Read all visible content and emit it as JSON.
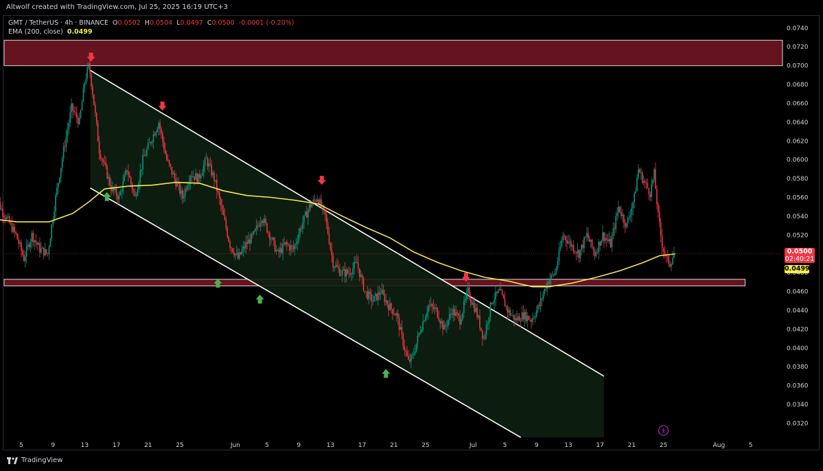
{
  "header": {
    "credit": "Altwolf created with TradingView.com, Jul 25, 2025 16:19 UTC+3"
  },
  "legend": {
    "symbol": "GMT / TetherUS · 4h · BINANCE",
    "open_label": "O",
    "open": "0.0502",
    "high_label": "H",
    "high": "0.0504",
    "low_label": "L",
    "low": "0.0497",
    "close_label": "C",
    "close": "0.0500",
    "change": "-0.0001 (-0.20%)",
    "ema_label": "EMA (200, close)",
    "ema_value": "0.0499"
  },
  "price_tags": {
    "last_price": "0.0500",
    "countdown": "02:40:21",
    "ema_price": "0.0499"
  },
  "branding": {
    "name": "TradingView"
  },
  "colors": {
    "background": "#000000",
    "up": "#089981",
    "down": "#f23645",
    "ema": "#f5e94a",
    "resistance_zone": "#6b1520",
    "channel": "#0d1f10",
    "arrow_up": "#4caf50",
    "arrow_down": "#f23645"
  },
  "chart_data": {
    "type": "candlestick",
    "symbol": "GMT / TetherUS",
    "timeframe": "4h",
    "exchange": "BINANCE",
    "y_axis": {
      "range": [
        0.0305,
        0.0753
      ],
      "ticks": [
        "0.0740",
        "0.0720",
        "0.0700",
        "0.0680",
        "0.0660",
        "0.0640",
        "0.0620",
        "0.0600",
        "0.0580",
        "0.0560",
        "0.0540",
        "0.0520",
        "0.0500",
        "0.0480",
        "0.0460",
        "0.0440",
        "0.0420",
        "0.0400",
        "0.0380",
        "0.0360",
        "0.0340",
        "0.0320"
      ]
    },
    "x_axis": {
      "ticks": [
        {
          "label": "5",
          "day": 5
        },
        {
          "label": "9",
          "day": 9
        },
        {
          "label": "13",
          "day": 13
        },
        {
          "label": "17",
          "day": 17
        },
        {
          "label": "21",
          "day": 21
        },
        {
          "label": "25",
          "day": 25
        },
        {
          "label": "Jun",
          "day": 32
        },
        {
          "label": "5",
          "day": 36
        },
        {
          "label": "9",
          "day": 40
        },
        {
          "label": "13",
          "day": 44
        },
        {
          "label": "17",
          "day": 48
        },
        {
          "label": "21",
          "day": 52
        },
        {
          "label": "25",
          "day": 56
        },
        {
          "label": "Jul",
          "day": 62
        },
        {
          "label": "5",
          "day": 66
        },
        {
          "label": "9",
          "day": 70
        },
        {
          "label": "13",
          "day": 74
        },
        {
          "label": "17",
          "day": 78
        },
        {
          "label": "21",
          "day": 82
        },
        {
          "label": "25",
          "day": 86
        },
        {
          "label": "Aug",
          "day": 93
        },
        {
          "label": "5",
          "day": 97
        }
      ]
    },
    "price_path": [
      [
        1.5,
        0.057
      ],
      [
        2.5,
        0.055
      ],
      [
        3.5,
        0.0535
      ],
      [
        4.5,
        0.052
      ],
      [
        5.5,
        0.0495
      ],
      [
        6.5,
        0.052
      ],
      [
        7.5,
        0.0505
      ],
      [
        8.5,
        0.05
      ],
      [
        9.5,
        0.056
      ],
      [
        10.5,
        0.061
      ],
      [
        11.5,
        0.0655
      ],
      [
        12.5,
        0.064
      ],
      [
        13.2,
        0.0685
      ],
      [
        13.7,
        0.07
      ],
      [
        14.2,
        0.067
      ],
      [
        15.0,
        0.061
      ],
      [
        15.8,
        0.059
      ],
      [
        16.5,
        0.057
      ],
      [
        17.5,
        0.056
      ],
      [
        18.5,
        0.059
      ],
      [
        19.5,
        0.056
      ],
      [
        20.5,
        0.06
      ],
      [
        21.5,
        0.062
      ],
      [
        22.5,
        0.064
      ],
      [
        23.5,
        0.06
      ],
      [
        24.5,
        0.058
      ],
      [
        25.5,
        0.056
      ],
      [
        26.5,
        0.0585
      ],
      [
        27.5,
        0.058
      ],
      [
        28.5,
        0.06
      ],
      [
        29.5,
        0.058
      ],
      [
        30.5,
        0.0545
      ],
      [
        31.5,
        0.051
      ],
      [
        32.5,
        0.0495
      ],
      [
        33.5,
        0.051
      ],
      [
        34.5,
        0.052
      ],
      [
        35.5,
        0.054
      ],
      [
        36.5,
        0.052
      ],
      [
        37.5,
        0.05
      ],
      [
        38.5,
        0.051
      ],
      [
        39.5,
        0.0505
      ],
      [
        40.5,
        0.053
      ],
      [
        41.5,
        0.055
      ],
      [
        42.5,
        0.056
      ],
      [
        43.5,
        0.054
      ],
      [
        44.5,
        0.049
      ],
      [
        45.5,
        0.048
      ],
      [
        46.5,
        0.048
      ],
      [
        47.5,
        0.049
      ],
      [
        48.5,
        0.046
      ],
      [
        49.5,
        0.045
      ],
      [
        50.5,
        0.046
      ],
      [
        51.5,
        0.0445
      ],
      [
        52.5,
        0.0435
      ],
      [
        53.5,
        0.04
      ],
      [
        54.0,
        0.0385
      ],
      [
        54.5,
        0.039
      ],
      [
        55.5,
        0.042
      ],
      [
        56.5,
        0.0445
      ],
      [
        57.5,
        0.044
      ],
      [
        58.5,
        0.042
      ],
      [
        59.5,
        0.044
      ],
      [
        60.5,
        0.043
      ],
      [
        61.5,
        0.046
      ],
      [
        62.5,
        0.044
      ],
      [
        63.5,
        0.041
      ],
      [
        64.5,
        0.045
      ],
      [
        65.5,
        0.046
      ],
      [
        66.5,
        0.044
      ],
      [
        67.5,
        0.043
      ],
      [
        68.5,
        0.0435
      ],
      [
        69.5,
        0.043
      ],
      [
        70.5,
        0.0445
      ],
      [
        71.5,
        0.047
      ],
      [
        72.5,
        0.048
      ],
      [
        73.5,
        0.052
      ],
      [
        74.5,
        0.051
      ],
      [
        75.5,
        0.05
      ],
      [
        76.5,
        0.052
      ],
      [
        77.5,
        0.05
      ],
      [
        78.5,
        0.052
      ],
      [
        79.5,
        0.051
      ],
      [
        80.5,
        0.055
      ],
      [
        81.5,
        0.053
      ],
      [
        82.5,
        0.056
      ],
      [
        83.0,
        0.059
      ],
      [
        83.5,
        0.058
      ],
      [
        84.5,
        0.0565
      ],
      [
        85.0,
        0.0585
      ],
      [
        85.5,
        0.054
      ],
      [
        86.0,
        0.051
      ],
      [
        86.5,
        0.0495
      ],
      [
        87.0,
        0.049
      ],
      [
        87.5,
        0.05
      ]
    ],
    "ema": [
      [
        1.5,
        0.0537
      ],
      [
        4.5,
        0.0534
      ],
      [
        8.5,
        0.0534
      ],
      [
        11.5,
        0.0543
      ],
      [
        13.5,
        0.0555
      ],
      [
        15.5,
        0.0569
      ],
      [
        18.5,
        0.0572
      ],
      [
        21.5,
        0.0573
      ],
      [
        24.5,
        0.0576
      ],
      [
        27.5,
        0.0575
      ],
      [
        30.5,
        0.0567
      ],
      [
        33.5,
        0.0562
      ],
      [
        36.5,
        0.056
      ],
      [
        39.5,
        0.0557
      ],
      [
        42.5,
        0.0553
      ],
      [
        45.5,
        0.054
      ],
      [
        48.5,
        0.0528
      ],
      [
        51.5,
        0.0517
      ],
      [
        54.5,
        0.0502
      ],
      [
        57.5,
        0.0491
      ],
      [
        60.5,
        0.0482
      ],
      [
        63.5,
        0.0475
      ],
      [
        66.5,
        0.0471
      ],
      [
        69.5,
        0.0465
      ],
      [
        71.5,
        0.0465
      ],
      [
        74.5,
        0.0469
      ],
      [
        77.5,
        0.0475
      ],
      [
        80.5,
        0.0482
      ],
      [
        83.5,
        0.0491
      ],
      [
        85.5,
        0.0498
      ],
      [
        87.5,
        0.05
      ]
    ],
    "zones": [
      {
        "name": "resistance",
        "low": 0.07,
        "high": 0.0727
      },
      {
        "name": "support",
        "low": 0.0466,
        "high": 0.0473
      }
    ],
    "channel": {
      "upper": [
        [
          13.7,
          0.0695
        ],
        [
          78.5,
          0.037
        ]
      ],
      "lower": [
        [
          13.7,
          0.057
        ],
        [
          68.0,
          0.0305
        ]
      ]
    },
    "arrows": [
      {
        "dir": "down",
        "day": 13.8,
        "price": 0.0708
      },
      {
        "dir": "down",
        "day": 22.8,
        "price": 0.0656
      },
      {
        "dir": "down",
        "day": 42.9,
        "price": 0.0577
      },
      {
        "dir": "down",
        "day": 61.1,
        "price": 0.0474
      },
      {
        "dir": "up",
        "day": 15.8,
        "price": 0.0562
      },
      {
        "dir": "up",
        "day": 29.8,
        "price": 0.047
      },
      {
        "dir": "up",
        "day": 35.1,
        "price": 0.0453
      },
      {
        "dir": "up",
        "day": 51.0,
        "price": 0.0374
      }
    ]
  }
}
